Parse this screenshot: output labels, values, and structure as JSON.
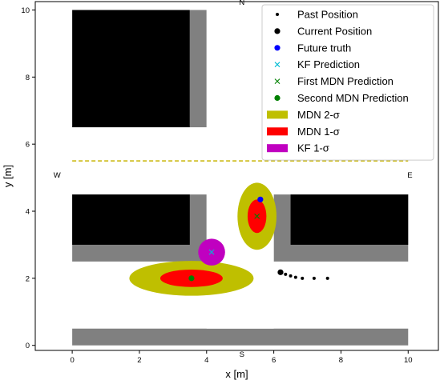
{
  "chart_data": {
    "type": "scatter",
    "xlabel": "x [m]",
    "ylabel": "y [m]",
    "xlim": [
      -1.1,
      10.9
    ],
    "ylim": [
      -0.15,
      10.25
    ],
    "xticks": [
      0,
      2,
      4,
      6,
      8,
      10
    ],
    "yticks": [
      0,
      2,
      4,
      6,
      8,
      10
    ],
    "grid": false,
    "legend_position": "top-right",
    "compass": [
      {
        "label": "N",
        "x": 5.05,
        "y": 10.25
      },
      {
        "label": "S",
        "x": 5.05,
        "y": -0.25
      },
      {
        "label": "W",
        "x": -0.45,
        "y": 5.1
      },
      {
        "label": "E",
        "x": 10.05,
        "y": 5.1
      }
    ],
    "environment": {
      "gray_color": "#808080",
      "black_color": "#000000",
      "gray_blocks": [
        {
          "x0": 3.5,
          "y0": 6.5,
          "x1": 4.0,
          "y1": 10.0
        },
        {
          "x0": 0.0,
          "y0": 2.5,
          "x1": 4.0,
          "y1": 4.5
        },
        {
          "x0": 6.0,
          "y0": 2.5,
          "x1": 10.0,
          "y1": 4.5
        },
        {
          "x0": 0.0,
          "y0": 0.0,
          "x1": 10.0,
          "y1": 0.5
        }
      ],
      "black_blocks": [
        {
          "x0": 0.0,
          "y0": 6.5,
          "x1": 3.5,
          "y1": 10.0
        },
        {
          "x0": 0.0,
          "y0": 3.0,
          "x1": 3.5,
          "y1": 4.5
        },
        {
          "x0": 6.5,
          "y0": 3.0,
          "x1": 10.0,
          "y1": 4.5
        }
      ],
      "white_cutouts": [
        {
          "x0": 0.0,
          "y0": 4.5,
          "x1": 10.0,
          "y1": 6.5
        },
        {
          "x0": 4.0,
          "y0": 0.5,
          "x1": 6.0,
          "y1": 10.0
        }
      ],
      "lane_line": {
        "x0": 0.0,
        "x1": 10.0,
        "y": 5.5,
        "color": "#c8b400"
      }
    },
    "series": [
      {
        "name": "Past Position",
        "kind": "dot",
        "color": "#000000",
        "points": [
          [
            6.35,
            2.12
          ],
          [
            6.5,
            2.07
          ],
          [
            6.65,
            2.03
          ],
          [
            6.85,
            2.0
          ],
          [
            7.2,
            2.0
          ],
          [
            7.6,
            2.0
          ]
        ]
      },
      {
        "name": "Current Position",
        "kind": "big-dot",
        "color": "#000000",
        "points": [
          [
            6.2,
            2.18
          ]
        ]
      },
      {
        "name": "Future truth",
        "kind": "big-dot",
        "color": "#0000ff",
        "points": [
          [
            5.6,
            4.35
          ]
        ]
      },
      {
        "name": "KF Prediction",
        "kind": "x",
        "color": "#00bcd4",
        "points": [
          [
            4.15,
            2.78
          ]
        ]
      },
      {
        "name": "First MDN Prediction",
        "kind": "x",
        "color": "#008000",
        "points": [
          [
            5.5,
            3.85
          ]
        ]
      },
      {
        "name": "Second MDN Prediction",
        "kind": "big-dot",
        "color": "#008000",
        "points": [
          [
            3.55,
            2.0
          ]
        ]
      }
    ],
    "ellipses": [
      {
        "name": "MDN 2-σ",
        "color": "#bfbf00",
        "cx": 5.5,
        "cy": 3.85,
        "rx": 0.58,
        "ry": 1.0
      },
      {
        "name": "MDN 2-σ",
        "color": "#bfbf00",
        "cx": 3.55,
        "cy": 2.0,
        "rx": 1.85,
        "ry": 0.52
      },
      {
        "name": "MDN 1-σ",
        "color": "#ff0000",
        "cx": 5.5,
        "cy": 3.85,
        "rx": 0.28,
        "ry": 0.5
      },
      {
        "name": "MDN 1-σ",
        "color": "#ff0000",
        "cx": 3.55,
        "cy": 2.0,
        "rx": 0.93,
        "ry": 0.26
      },
      {
        "name": "KF 1-σ",
        "color": "#c000c0",
        "cx": 4.15,
        "cy": 2.78,
        "rx": 0.4,
        "ry": 0.4
      }
    ],
    "legend": [
      {
        "label": "Past Position",
        "kind": "dot",
        "color": "#000000"
      },
      {
        "label": "Current Position",
        "kind": "big-dot",
        "color": "#000000"
      },
      {
        "label": "Future truth",
        "kind": "big-dot",
        "color": "#0000ff"
      },
      {
        "label": "KF Prediction",
        "kind": "x",
        "color": "#00bcd4"
      },
      {
        "label": "First MDN Prediction",
        "kind": "x",
        "color": "#008000"
      },
      {
        "label": "Second MDN Prediction",
        "kind": "big-dot",
        "color": "#008000"
      },
      {
        "label": "MDN 2-σ",
        "kind": "patch",
        "color": "#bfbf00"
      },
      {
        "label": "MDN 1-σ",
        "kind": "patch",
        "color": "#ff0000"
      },
      {
        "label": "KF 1-σ",
        "kind": "patch",
        "color": "#c000c0"
      }
    ]
  }
}
